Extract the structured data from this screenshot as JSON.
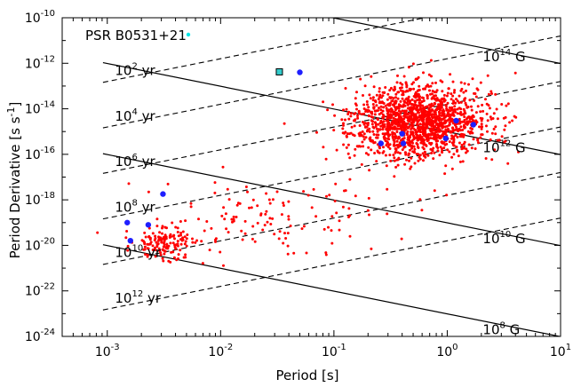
{
  "chart_data": {
    "type": "scatter",
    "xlabel": "Period [s]",
    "ylabel": "Period Derivative [s s",
    "ylabel_sup": "-1",
    "ylabel_suffix": "]",
    "x_scale": "log",
    "y_scale": "log",
    "xlim": [
      0.0004,
      10
    ],
    "ylim": [
      1e-24,
      1e-10
    ],
    "x_ticks": [
      {
        "base": "10",
        "exp": "-3"
      },
      {
        "base": "10",
        "exp": "-2"
      },
      {
        "base": "10",
        "exp": "-1"
      },
      {
        "base": "10",
        "exp": "0"
      },
      {
        "base": "10",
        "exp": "1"
      }
    ],
    "y_ticks": [
      {
        "base": "10",
        "exp": "-24"
      },
      {
        "base": "10",
        "exp": "-22"
      },
      {
        "base": "10",
        "exp": "-20"
      },
      {
        "base": "10",
        "exp": "-18"
      },
      {
        "base": "10",
        "exp": "-16"
      },
      {
        "base": "10",
        "exp": "-14"
      },
      {
        "base": "10",
        "exp": "-12"
      },
      {
        "base": "10",
        "exp": "-10"
      }
    ],
    "legend": {
      "label": "PSR B0531+21",
      "placement": "top-left",
      "marker_color": "#00e5e5"
    },
    "magnetic_field_lines": [
      {
        "label_base": "10",
        "label_exp": "8",
        "label_unit": "G",
        "coef_log": 16
      },
      {
        "label_base": "10",
        "label_exp": "10",
        "label_unit": "G",
        "coef_log": 20
      },
      {
        "label_base": "10",
        "label_exp": "12",
        "label_unit": "G",
        "coef_log": 24
      },
      {
        "label_base": "10",
        "label_exp": "14",
        "label_unit": "G",
        "coef_log": 28
      }
    ],
    "age_lines": [
      {
        "label_base": "10",
        "label_exp": "2",
        "label_unit": "yr",
        "age_log": 2
      },
      {
        "label_base": "10",
        "label_exp": "4",
        "label_unit": "yr",
        "age_log": 4
      },
      {
        "label_base": "10",
        "label_exp": "6",
        "label_unit": "yr",
        "age_log": 6
      },
      {
        "label_base": "10",
        "label_exp": "8",
        "label_unit": "yr",
        "age_log": 8
      },
      {
        "label_base": "10",
        "label_exp": "10",
        "label_unit": "yr",
        "age_log": 10
      },
      {
        "label_base": "10",
        "label_exp": "12",
        "label_unit": "yr",
        "age_log": 12
      }
    ],
    "series": [
      {
        "marker": "red-dot",
        "color": "#ff0000",
        "clusters": [
          {
            "count": 1500,
            "x_log_mean": -0.25,
            "x_log_sd": 0.3,
            "y_log_mean": -14.6,
            "y_log_sd": 0.8
          },
          {
            "count": 140,
            "x_log_mean": -2.5,
            "x_log_sd": 0.14,
            "y_log_mean": -19.9,
            "y_log_sd": 0.35
          },
          {
            "count": 130,
            "x_log_mean": -1.6,
            "x_log_sd": 0.55,
            "y_log_mean": -18.8,
            "y_log_sd": 0.85
          }
        ]
      },
      {
        "marker": "blue-dot",
        "color": "#1f1fff",
        "points": [
          {
            "x": 0.0015,
            "y": 1e-19
          },
          {
            "x": 0.0016,
            "y": 1.6e-20
          },
          {
            "x": 0.0023,
            "y": 8e-20
          },
          {
            "x": 0.0031,
            "y": 1.8e-18
          },
          {
            "x": 0.05,
            "y": 4e-13
          },
          {
            "x": 0.26,
            "y": 3e-16
          },
          {
            "x": 0.4,
            "y": 8e-16
          },
          {
            "x": 0.41,
            "y": 3e-16
          },
          {
            "x": 0.97,
            "y": 5e-16
          },
          {
            "x": 1.2,
            "y": 3e-15
          },
          {
            "x": 1.7,
            "y": 2e-15
          }
        ]
      },
      {
        "marker": "teal-square",
        "color": "#33cccc",
        "points": [
          {
            "x": 0.033,
            "y": 4.2e-13
          }
        ]
      }
    ]
  }
}
